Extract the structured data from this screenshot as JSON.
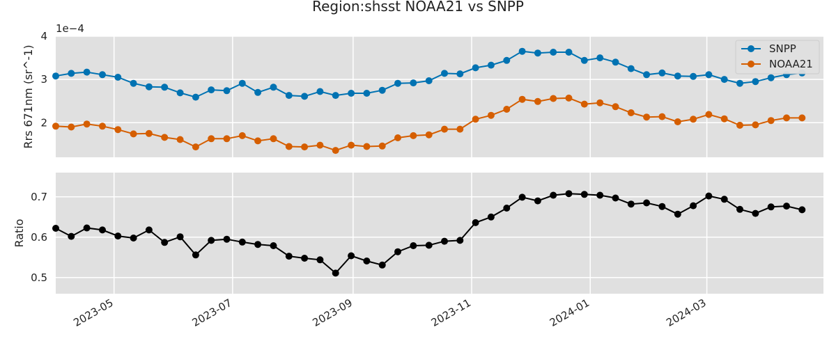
{
  "chart_data": [
    {
      "type": "line",
      "title": "Region:shsst NOAA21 vs SNPP",
      "ylabel": "Rrs 671nm (sr^-1)",
      "offset_text": "1e−4",
      "ylim": [
        1.2,
        4.0
      ],
      "yticks": [
        2,
        3,
        4
      ],
      "ytick_labels": [
        "2",
        "3",
        "4"
      ],
      "legend_position": "upper right",
      "grid": true,
      "series": [
        {
          "name": "SNPP",
          "color": "#0072B2",
          "values": [
            3.08,
            3.14,
            3.17,
            3.11,
            3.05,
            2.91,
            2.83,
            2.82,
            2.69,
            2.59,
            2.76,
            2.74,
            2.91,
            2.7,
            2.82,
            2.63,
            2.61,
            2.72,
            2.63,
            2.68,
            2.68,
            2.75,
            2.91,
            2.92,
            2.97,
            3.14,
            3.13,
            3.27,
            3.33,
            3.44,
            3.65,
            3.61,
            3.63,
            3.63,
            3.44,
            3.5,
            3.4,
            3.25,
            3.11,
            3.15,
            3.08,
            3.07,
            3.11,
            3.0,
            2.91,
            2.95,
            3.04,
            3.11,
            3.15
          ]
        },
        {
          "name": "NOAA21",
          "color": "#D55E00",
          "values": [
            1.92,
            1.9,
            1.97,
            1.92,
            1.84,
            1.74,
            1.75,
            1.66,
            1.61,
            1.44,
            1.63,
            1.63,
            1.7,
            1.58,
            1.63,
            1.45,
            1.44,
            1.48,
            1.36,
            1.48,
            1.45,
            1.46,
            1.65,
            1.7,
            1.72,
            1.85,
            1.85,
            2.08,
            2.17,
            2.31,
            2.54,
            2.49,
            2.56,
            2.57,
            2.43,
            2.46,
            2.37,
            2.23,
            2.13,
            2.14,
            2.02,
            2.08,
            2.19,
            2.09,
            1.94,
            1.95,
            2.05,
            2.11,
            2.11
          ]
        }
      ]
    },
    {
      "type": "line",
      "ylabel": "Ratio",
      "ylim": [
        0.46,
        0.76
      ],
      "yticks": [
        0.5,
        0.6,
        0.7
      ],
      "ytick_labels": [
        "0.5",
        "0.6",
        "0.7"
      ],
      "grid": true,
      "series": [
        {
          "color": "#000000",
          "values": [
            0.622,
            0.602,
            0.623,
            0.618,
            0.603,
            0.598,
            0.618,
            0.587,
            0.601,
            0.556,
            0.592,
            0.595,
            0.588,
            0.582,
            0.579,
            0.553,
            0.548,
            0.544,
            0.511,
            0.554,
            0.541,
            0.531,
            0.564,
            0.579,
            0.58,
            0.59,
            0.592,
            0.636,
            0.65,
            0.672,
            0.699,
            0.69,
            0.704,
            0.708,
            0.706,
            0.704,
            0.697,
            0.682,
            0.685,
            0.676,
            0.657,
            0.678,
            0.702,
            0.694,
            0.669,
            0.659,
            0.675,
            0.677,
            0.668
          ]
        }
      ]
    }
  ],
  "x_axis": {
    "type": "date",
    "start": "2023-04-01",
    "end": "2024-04-30",
    "first_point": "2023-04-01",
    "step_days": 8,
    "ticks": [
      "2023-05-01",
      "2023-07-01",
      "2023-09-01",
      "2023-11-01",
      "2024-01-01",
      "2024-03-01"
    ],
    "tick_labels": [
      "2023-05",
      "2023-07",
      "2023-09",
      "2023-11",
      "2024-01",
      "2024-03"
    ]
  }
}
